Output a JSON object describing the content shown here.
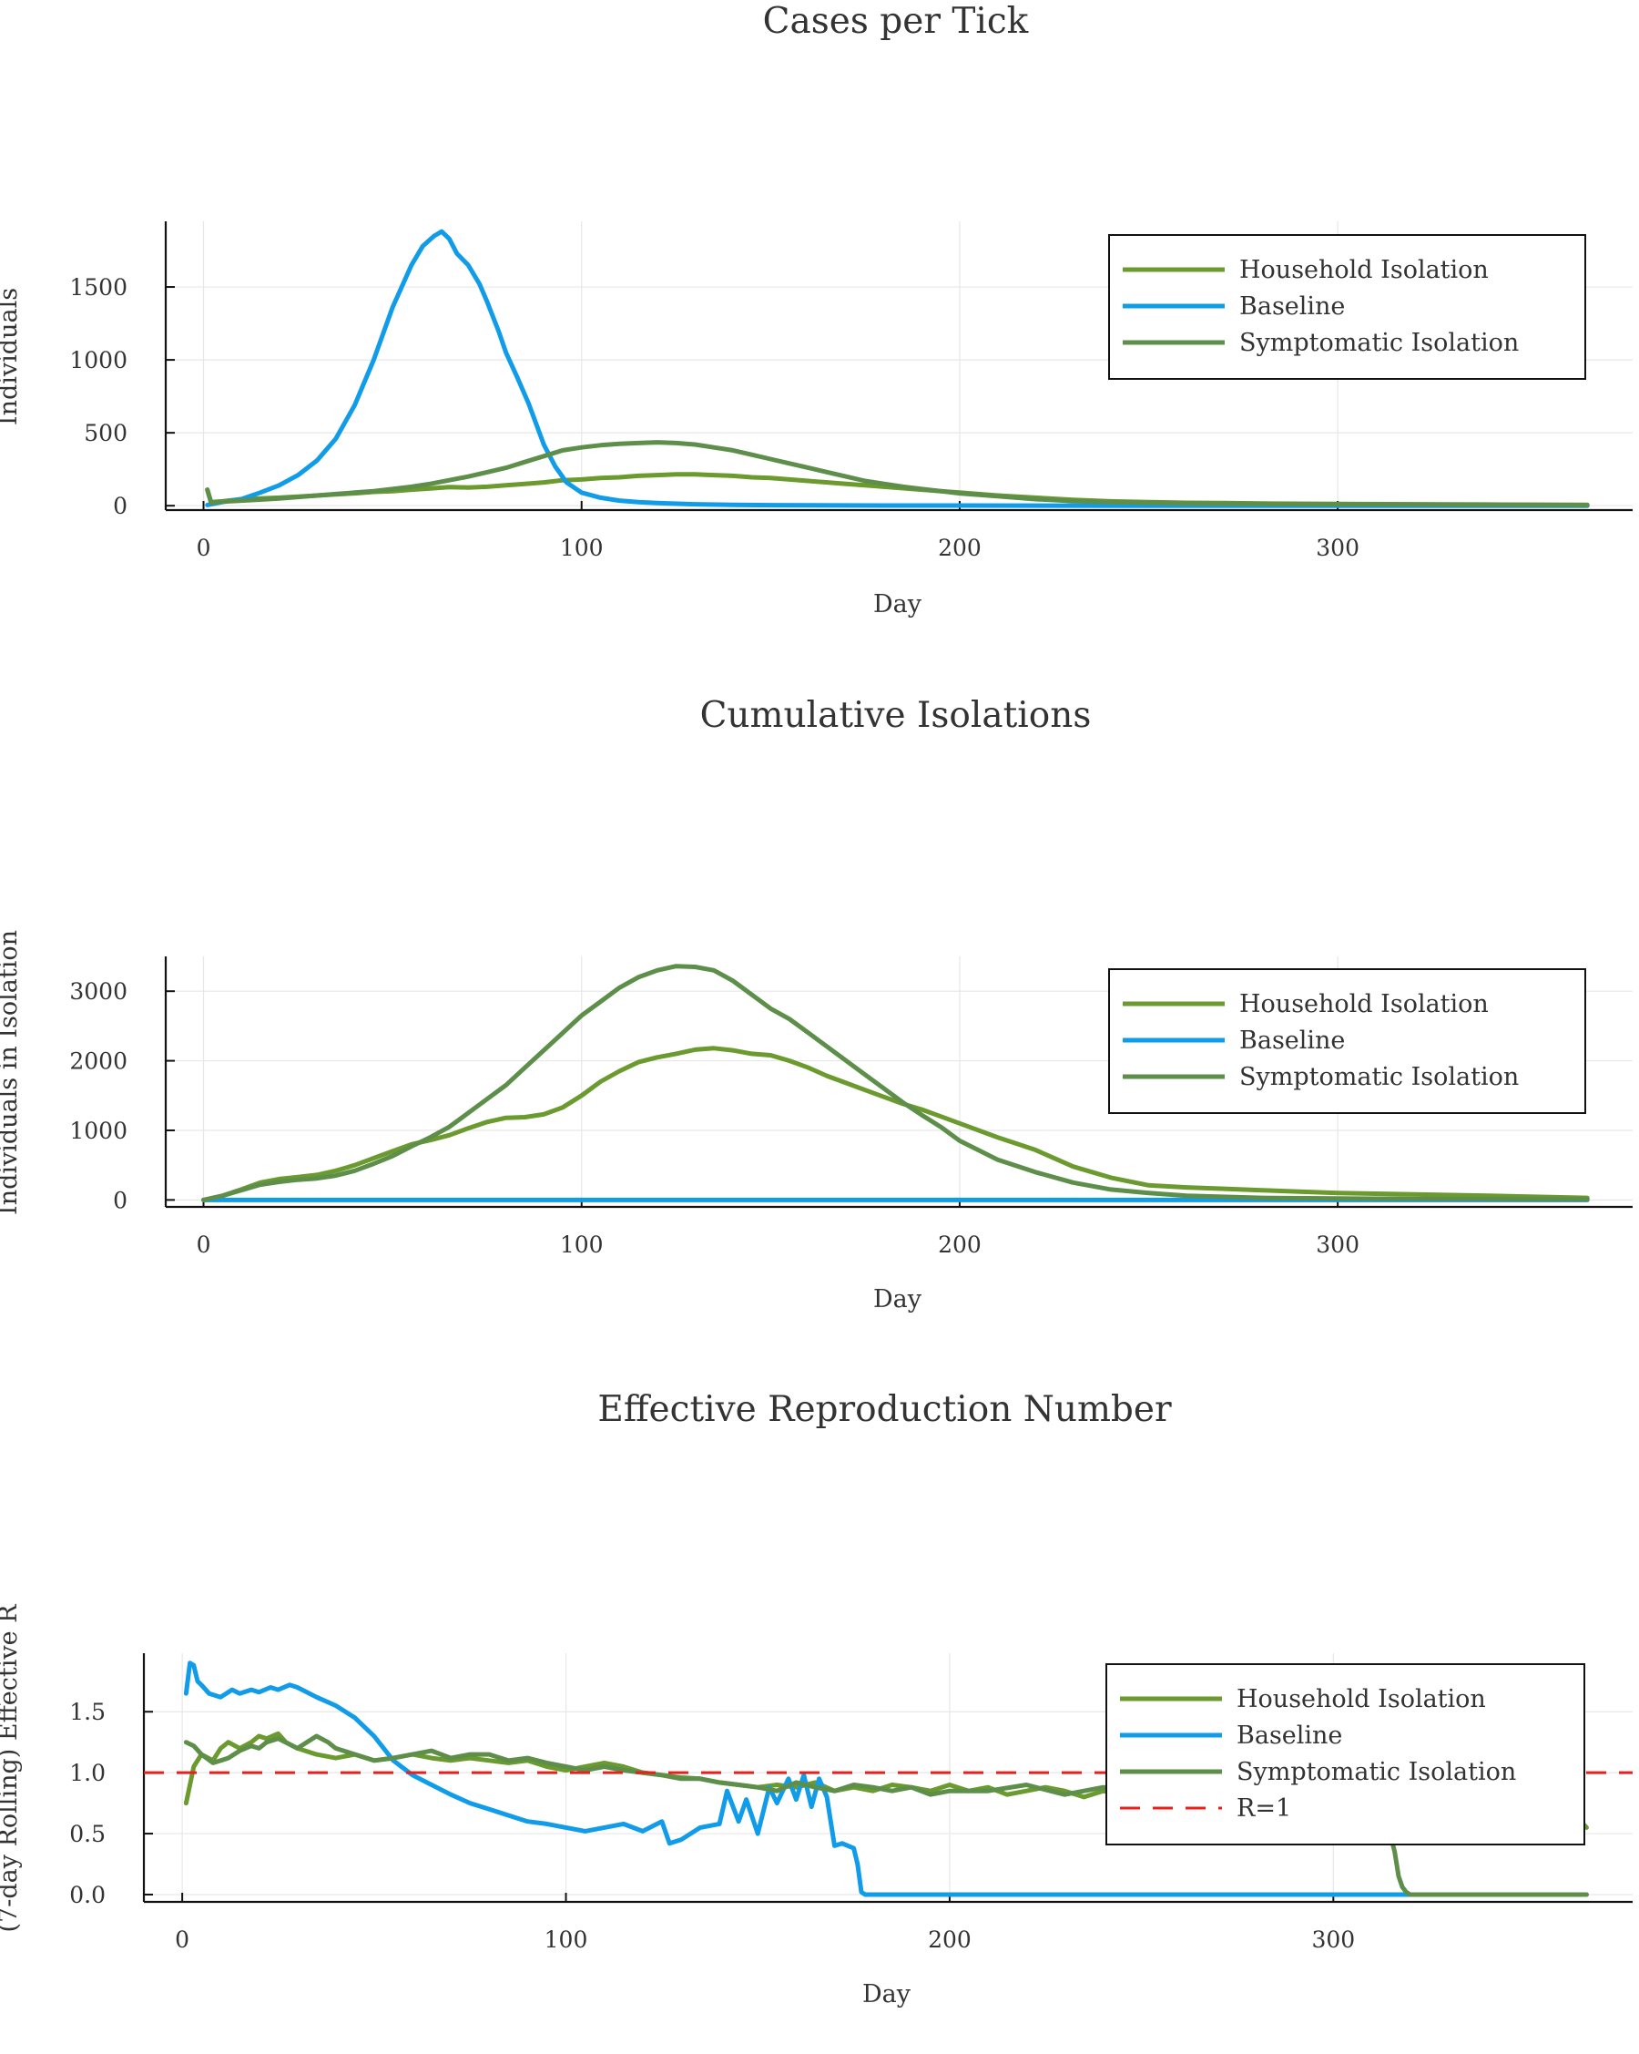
{
  "colors": {
    "household": "#6B9A2E",
    "baseline": "#109CE8",
    "symptomatic": "#5E8F4A",
    "r1": "#E8201C",
    "grid": "#e7e7e7",
    "axis": "#111111"
  },
  "chart_data": [
    {
      "type": "line",
      "title": "Cases per Tick",
      "xlabel": "Day",
      "ylabel": "Individuals",
      "xlim": [
        -10,
        378
      ],
      "ylim": [
        -30,
        1950
      ],
      "xticks": [
        0,
        100,
        200,
        300
      ],
      "yticks": [
        0,
        500,
        1000,
        1500
      ],
      "grid": true,
      "legend_position": "top-right",
      "legend": [
        "Household Isolation",
        "Baseline",
        "Symptomatic Isolation"
      ],
      "series": [
        {
          "name": "Household Isolation",
          "color_key": "household",
          "x": [
            1,
            2,
            5,
            10,
            15,
            20,
            25,
            30,
            35,
            40,
            45,
            50,
            55,
            60,
            65,
            70,
            75,
            80,
            85,
            90,
            95,
            100,
            105,
            110,
            115,
            120,
            125,
            130,
            135,
            140,
            145,
            150,
            155,
            160,
            165,
            170,
            175,
            180,
            185,
            190,
            195,
            200,
            210,
            220,
            230,
            240,
            250,
            260,
            270,
            280,
            300,
            320,
            340,
            366
          ],
          "y": [
            110,
            25,
            30,
            45,
            50,
            55,
            62,
            70,
            78,
            85,
            95,
            100,
            110,
            118,
            128,
            125,
            130,
            140,
            150,
            160,
            175,
            180,
            190,
            195,
            205,
            210,
            215,
            215,
            210,
            205,
            195,
            190,
            180,
            170,
            160,
            150,
            140,
            130,
            120,
            110,
            100,
            90,
            70,
            55,
            40,
            30,
            25,
            20,
            18,
            15,
            12,
            10,
            8,
            6
          ]
        },
        {
          "name": "Baseline",
          "color_key": "baseline",
          "x": [
            1,
            3,
            5,
            10,
            15,
            20,
            25,
            30,
            35,
            40,
            45,
            50,
            55,
            58,
            61,
            63,
            65,
            67,
            70,
            73,
            75,
            78,
            80,
            83,
            86,
            88,
            90,
            93,
            96,
            100,
            105,
            110,
            115,
            120,
            130,
            140,
            150,
            160,
            170,
            180,
            200,
            250,
            300,
            366
          ],
          "y": [
            5,
            15,
            25,
            45,
            90,
            140,
            210,
            310,
            460,
            690,
            1000,
            1360,
            1650,
            1780,
            1850,
            1880,
            1830,
            1730,
            1650,
            1520,
            1400,
            1200,
            1050,
            880,
            700,
            560,
            420,
            270,
            160,
            90,
            55,
            35,
            25,
            18,
            10,
            6,
            4,
            3,
            2,
            1,
            1,
            0,
            0,
            0
          ]
        },
        {
          "name": "Symptomatic Isolation",
          "color_key": "symptomatic",
          "x": [
            1,
            2,
            5,
            10,
            15,
            20,
            25,
            30,
            35,
            40,
            45,
            50,
            55,
            60,
            65,
            70,
            75,
            80,
            85,
            90,
            95,
            100,
            105,
            110,
            115,
            120,
            125,
            130,
            135,
            140,
            145,
            150,
            155,
            160,
            165,
            170,
            175,
            180,
            185,
            190,
            195,
            200,
            210,
            220,
            230,
            240,
            250,
            260,
            280,
            300,
            320,
            340,
            366
          ],
          "y": [
            110,
            20,
            28,
            35,
            42,
            50,
            60,
            70,
            80,
            90,
            100,
            115,
            130,
            150,
            175,
            200,
            230,
            260,
            300,
            340,
            380,
            400,
            415,
            425,
            430,
            435,
            430,
            420,
            400,
            380,
            350,
            320,
            290,
            260,
            230,
            200,
            170,
            150,
            130,
            115,
            100,
            85,
            65,
            45,
            32,
            25,
            20,
            15,
            12,
            10,
            8,
            6,
            4
          ]
        }
      ]
    },
    {
      "type": "line",
      "title": "Cumulative Isolations",
      "xlabel": "Day",
      "ylabel": "Individuals in Isolation",
      "xlim": [
        -10,
        378
      ],
      "ylim": [
        -100,
        3500
      ],
      "xticks": [
        0,
        100,
        200,
        300
      ],
      "yticks": [
        0,
        1000,
        2000,
        3000
      ],
      "grid": true,
      "legend_position": "top-right",
      "legend": [
        "Household Isolation",
        "Baseline",
        "Symptomatic Isolation"
      ],
      "series": [
        {
          "name": "Household Isolation",
          "color_key": "household",
          "x": [
            0,
            5,
            10,
            15,
            20,
            25,
            30,
            35,
            40,
            45,
            50,
            55,
            60,
            65,
            70,
            75,
            80,
            85,
            90,
            95,
            100,
            105,
            110,
            115,
            120,
            125,
            130,
            135,
            140,
            145,
            150,
            155,
            160,
            165,
            170,
            175,
            180,
            185,
            190,
            195,
            200,
            210,
            220,
            230,
            240,
            250,
            260,
            270,
            280,
            290,
            300,
            320,
            340,
            366
          ],
          "y": [
            0,
            60,
            150,
            250,
            300,
            330,
            360,
            420,
            500,
            600,
            700,
            800,
            860,
            930,
            1030,
            1120,
            1180,
            1190,
            1230,
            1330,
            1500,
            1700,
            1850,
            1980,
            2050,
            2100,
            2160,
            2180,
            2150,
            2100,
            2080,
            2000,
            1900,
            1780,
            1680,
            1580,
            1480,
            1380,
            1300,
            1200,
            1100,
            900,
            720,
            480,
            320,
            210,
            180,
            160,
            140,
            120,
            100,
            80,
            60,
            30
          ]
        },
        {
          "name": "Baseline",
          "color_key": "baseline",
          "x": [
            0,
            366
          ],
          "y": [
            0,
            0
          ]
        },
        {
          "name": "Symptomatic Isolation",
          "color_key": "symptomatic",
          "x": [
            0,
            5,
            10,
            15,
            20,
            25,
            30,
            35,
            40,
            45,
            50,
            55,
            60,
            65,
            70,
            75,
            80,
            85,
            90,
            95,
            100,
            105,
            110,
            115,
            120,
            125,
            130,
            135,
            140,
            145,
            150,
            155,
            160,
            165,
            170,
            175,
            180,
            185,
            190,
            195,
            200,
            210,
            220,
            230,
            240,
            250,
            260,
            280,
            300,
            320,
            340,
            366
          ],
          "y": [
            0,
            60,
            140,
            220,
            260,
            290,
            310,
            350,
            420,
            520,
            630,
            770,
            900,
            1050,
            1250,
            1450,
            1650,
            1900,
            2150,
            2400,
            2650,
            2850,
            3050,
            3200,
            3300,
            3360,
            3350,
            3300,
            3150,
            2950,
            2750,
            2600,
            2400,
            2200,
            2000,
            1800,
            1600,
            1400,
            1220,
            1050,
            850,
            580,
            400,
            250,
            150,
            100,
            60,
            30,
            20,
            15,
            12,
            8
          ]
        }
      ]
    },
    {
      "type": "line",
      "title": "Effective Reproduction Number",
      "xlabel": "Day",
      "ylabel": "(7-day Rolling) Effective R",
      "xlim": [
        -10,
        378
      ],
      "ylim": [
        -0.06,
        1.98
      ],
      "xticks": [
        0,
        100,
        200,
        300
      ],
      "yticks": [
        "0.0",
        "0.5",
        "1.0",
        "1.5"
      ],
      "grid": true,
      "legend_position": "top-right",
      "legend": [
        "Household Isolation",
        "Baseline",
        "Symptomatic Isolation",
        "R=1"
      ],
      "series": [
        {
          "name": "Household Isolation",
          "color_key": "household",
          "x": [
            1,
            3,
            5,
            8,
            10,
            12,
            15,
            18,
            20,
            22,
            25,
            27,
            30,
            35,
            40,
            45,
            50,
            55,
            60,
            65,
            70,
            75,
            80,
            85,
            90,
            95,
            100,
            105,
            110,
            115,
            120,
            125,
            130,
            135,
            140,
            145,
            150,
            155,
            160,
            165,
            170,
            175,
            180,
            185,
            190,
            195,
            200,
            205,
            210,
            215,
            220,
            225,
            230,
            235,
            240,
            245,
            250,
            255,
            260,
            265,
            270,
            275,
            280,
            285,
            290,
            295,
            300,
            310,
            320,
            330,
            340,
            350,
            360,
            366
          ],
          "y": [
            0.75,
            1.05,
            1.15,
            1.1,
            1.2,
            1.25,
            1.2,
            1.25,
            1.3,
            1.28,
            1.32,
            1.25,
            1.2,
            1.15,
            1.12,
            1.15,
            1.1,
            1.12,
            1.15,
            1.12,
            1.1,
            1.12,
            1.1,
            1.08,
            1.1,
            1.05,
            1.02,
            1.05,
            1.08,
            1.05,
            1.0,
            0.98,
            0.96,
            0.95,
            0.92,
            0.9,
            0.88,
            0.9,
            0.88,
            0.92,
            0.85,
            0.88,
            0.85,
            0.9,
            0.88,
            0.85,
            0.9,
            0.85,
            0.88,
            0.82,
            0.85,
            0.88,
            0.85,
            0.8,
            0.85,
            0.82,
            0.86,
            0.84,
            0.8,
            0.85,
            0.82,
            0.78,
            0.85,
            0.8,
            0.75,
            0.8,
            0.85,
            0.8,
            0.75,
            0.8,
            0.85,
            0.8,
            0.75,
            0.55
          ]
        },
        {
          "name": "Baseline",
          "color_key": "baseline",
          "x": [
            1,
            2,
            3,
            4,
            5,
            7,
            10,
            13,
            15,
            18,
            20,
            23,
            25,
            28,
            30,
            35,
            40,
            45,
            50,
            55,
            60,
            65,
            70,
            75,
            80,
            85,
            90,
            95,
            100,
            105,
            110,
            115,
            120,
            125,
            127,
            130,
            135,
            140,
            142,
            145,
            147,
            150,
            153,
            155,
            158,
            160,
            162,
            164,
            166,
            168,
            170,
            172,
            175,
            176,
            177,
            178,
            200,
            250,
            300,
            366
          ],
          "y": [
            1.65,
            1.9,
            1.88,
            1.75,
            1.72,
            1.65,
            1.62,
            1.68,
            1.65,
            1.68,
            1.66,
            1.7,
            1.68,
            1.72,
            1.7,
            1.62,
            1.55,
            1.45,
            1.3,
            1.1,
            0.98,
            0.9,
            0.82,
            0.75,
            0.7,
            0.65,
            0.6,
            0.58,
            0.55,
            0.52,
            0.55,
            0.58,
            0.52,
            0.6,
            0.42,
            0.45,
            0.55,
            0.58,
            0.85,
            0.6,
            0.78,
            0.5,
            0.88,
            0.75,
            0.95,
            0.78,
            0.98,
            0.72,
            0.95,
            0.8,
            0.4,
            0.42,
            0.38,
            0.25,
            0.02,
            0,
            0,
            0,
            0,
            0
          ]
        },
        {
          "name": "Symptomatic Isolation",
          "color_key": "symptomatic",
          "x": [
            1,
            3,
            5,
            8,
            10,
            12,
            15,
            18,
            20,
            22,
            25,
            30,
            35,
            38,
            40,
            45,
            50,
            55,
            60,
            65,
            70,
            75,
            80,
            85,
            90,
            95,
            100,
            105,
            110,
            115,
            120,
            125,
            130,
            135,
            140,
            145,
            150,
            155,
            160,
            165,
            170,
            175,
            180,
            185,
            190,
            195,
            200,
            210,
            220,
            230,
            240,
            250,
            260,
            270,
            280,
            290,
            300,
            305,
            310,
            314,
            316,
            317,
            318,
            319,
            320,
            366
          ],
          "y": [
            1.25,
            1.22,
            1.15,
            1.08,
            1.1,
            1.12,
            1.18,
            1.22,
            1.2,
            1.25,
            1.28,
            1.2,
            1.3,
            1.25,
            1.2,
            1.15,
            1.1,
            1.12,
            1.15,
            1.18,
            1.12,
            1.15,
            1.15,
            1.1,
            1.12,
            1.08,
            1.05,
            1.02,
            1.05,
            1.02,
            1.0,
            0.98,
            0.95,
            0.95,
            0.92,
            0.9,
            0.88,
            0.85,
            0.92,
            0.88,
            0.85,
            0.9,
            0.88,
            0.85,
            0.88,
            0.82,
            0.85,
            0.85,
            0.9,
            0.82,
            0.88,
            0.85,
            0.8,
            0.85,
            0.82,
            0.88,
            0.85,
            0.8,
            0.75,
            0.6,
            0.35,
            0.15,
            0.06,
            0.02,
            0,
            0
          ]
        },
        {
          "name": "R=1",
          "color_key": "r1",
          "dashed": true,
          "x": [
            -10,
            378
          ],
          "y": [
            1,
            1
          ]
        }
      ]
    }
  ]
}
